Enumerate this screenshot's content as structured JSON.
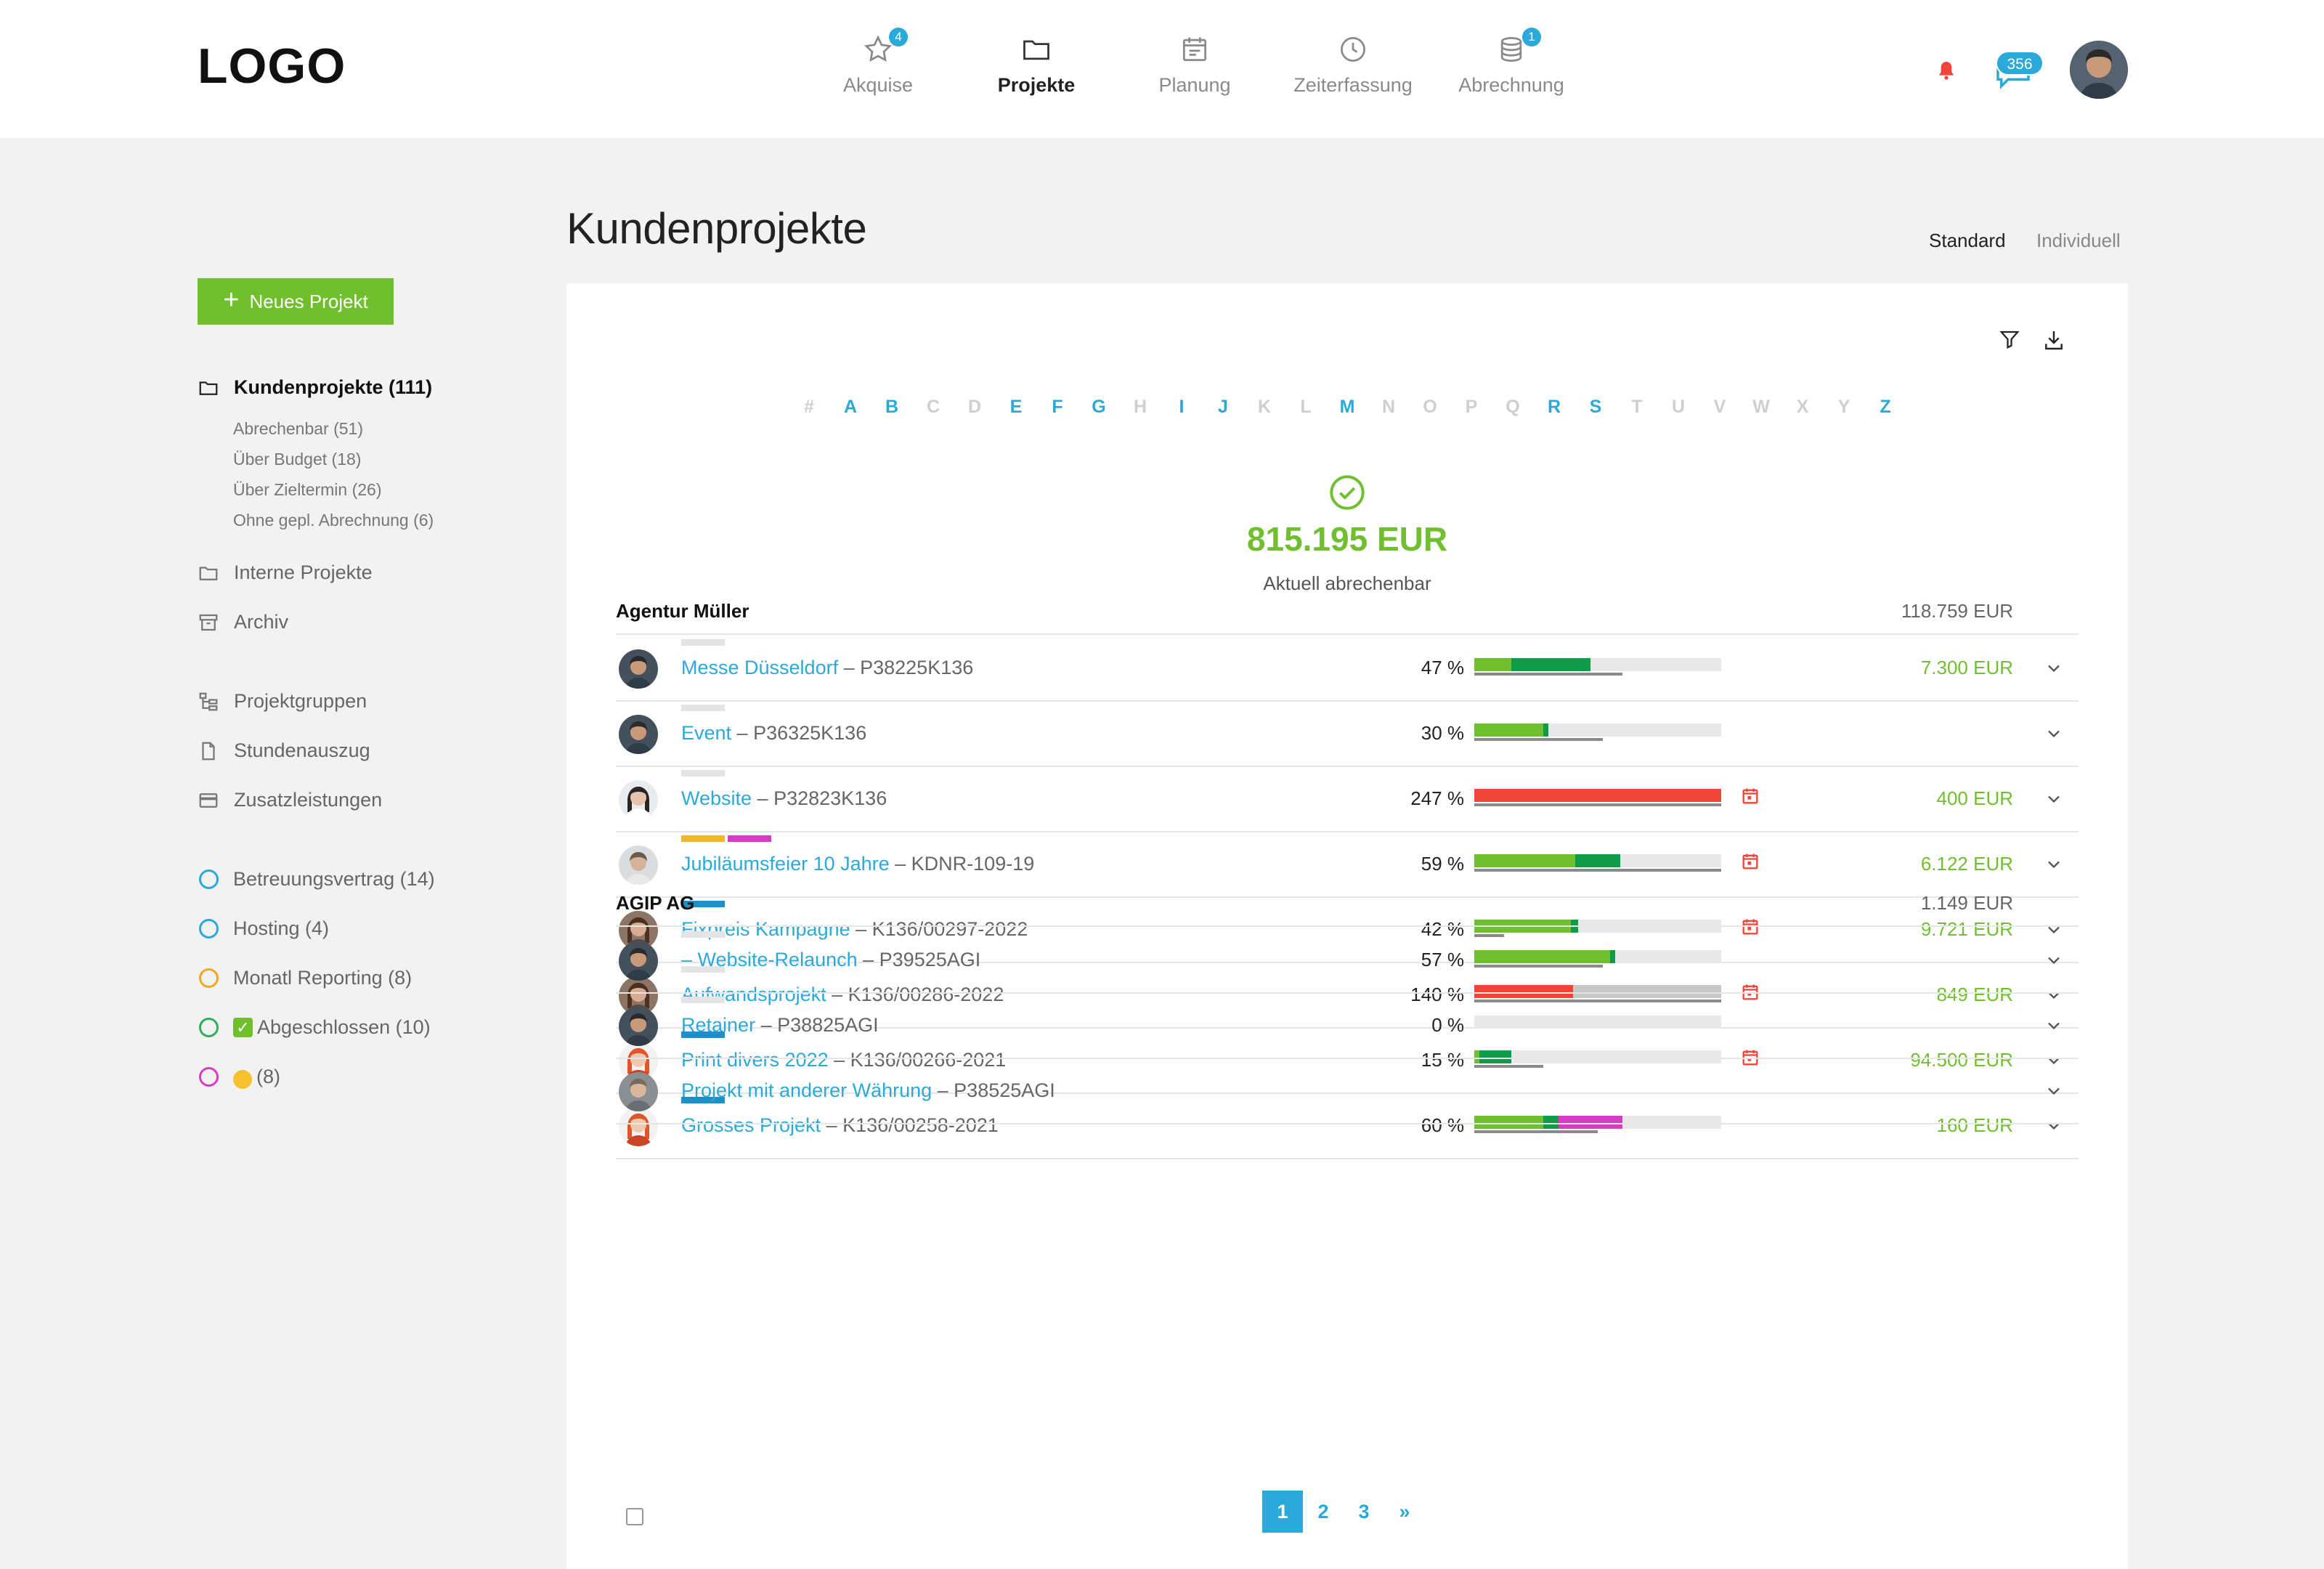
{
  "logo": "LOGO",
  "nav": {
    "items": [
      {
        "label": "Akquise",
        "icon": "star-icon",
        "badge": "4"
      },
      {
        "label": "Projekte",
        "icon": "folder-icon",
        "badge": ""
      },
      {
        "label": "Planung",
        "icon": "calendar-icon",
        "badge": ""
      },
      {
        "label": "Zeiterfassung",
        "icon": "clock-icon",
        "badge": ""
      },
      {
        "label": "Abrechnung",
        "icon": "coins-icon",
        "badge": "1"
      }
    ],
    "chat_badge": "356"
  },
  "sidebar": {
    "new_button": "Neues Projekt",
    "main": {
      "label": "Kundenprojekte (111)"
    },
    "sub": [
      "Abrechenbar (51)",
      "Über Budget (18)",
      "Über Zieltermin (26)",
      "Ohne gepl. Abrechnung (6)"
    ],
    "folders": [
      "Interne Projekte",
      "Archiv"
    ],
    "tools": [
      "Projektgruppen",
      "Stundenauszug",
      "Zusatzleistungen"
    ],
    "labels": [
      {
        "text": "Betreuungsvertrag (14)",
        "color": "#2ba9d8"
      },
      {
        "text": "Hosting (4)",
        "color": "#2ba9d8"
      },
      {
        "text": "Monatl Reporting (8)",
        "color": "#f5a623"
      },
      {
        "text": "Abgeschlossen (10)",
        "color": "#2fae5a"
      },
      {
        "text": "(8)",
        "color": "#d63cc5"
      }
    ]
  },
  "page": {
    "title": "Kundenprojekte",
    "view_standard": "Standard",
    "view_individuell": "Individuell"
  },
  "alphabet": [
    {
      "c": "#",
      "on": false
    },
    {
      "c": "A",
      "on": true
    },
    {
      "c": "B",
      "on": true
    },
    {
      "c": "C",
      "on": false
    },
    {
      "c": "D",
      "on": false
    },
    {
      "c": "E",
      "on": true
    },
    {
      "c": "F",
      "on": true
    },
    {
      "c": "G",
      "on": true
    },
    {
      "c": "H",
      "on": false
    },
    {
      "c": "I",
      "on": true
    },
    {
      "c": "J",
      "on": true
    },
    {
      "c": "K",
      "on": false
    },
    {
      "c": "L",
      "on": false
    },
    {
      "c": "M",
      "on": true
    },
    {
      "c": "N",
      "on": false
    },
    {
      "c": "O",
      "on": false
    },
    {
      "c": "P",
      "on": false
    },
    {
      "c": "Q",
      "on": false
    },
    {
      "c": "R",
      "on": true
    },
    {
      "c": "S",
      "on": true
    },
    {
      "c": "T",
      "on": false
    },
    {
      "c": "U",
      "on": false
    },
    {
      "c": "V",
      "on": false
    },
    {
      "c": "W",
      "on": false
    },
    {
      "c": "X",
      "on": false
    },
    {
      "c": "Y",
      "on": false
    },
    {
      "c": "Z",
      "on": true
    }
  ],
  "summary": {
    "value": "815.195 EUR",
    "label": "Aktuell abrechenbar"
  },
  "colors": {
    "green": "#6fbf2e",
    "darkgreen": "#0e9c4a",
    "red": "#f0463a",
    "magenta": "#d63cc5",
    "grey": "#c8c8c8",
    "blue": "#2ba9d8"
  },
  "groups": [
    {
      "name": "Agentur Müller",
      "total": "118.759 EUR",
      "rows": [
        {
          "link": "Messe Düsseldorf",
          "code": " – P38225K136",
          "pct": "47 %",
          "progress": 0.47,
          "segs": [
            [
              "green",
              0,
              0.15
            ],
            [
              "darkgreen",
              0.15,
              0.47
            ]
          ],
          "under": 0.6,
          "cal": false,
          "amount": "7.300 EUR",
          "tags": [
            "grey"
          ],
          "avatar": "m1"
        },
        {
          "link": "Event",
          "code": " – P36325K136",
          "pct": "30 %",
          "progress": 0.3,
          "segs": [
            [
              "green",
              0,
              0.28
            ],
            [
              "darkgreen",
              0.28,
              0.3
            ]
          ],
          "under": 0.52,
          "cal": false,
          "amount": "",
          "tags": [
            "grey"
          ],
          "avatar": "m1"
        },
        {
          "link": "Website",
          "code": " – P32823K136",
          "pct": "247 %",
          "progress": 2.47,
          "segs": [
            [
              "red",
              0,
              1.0
            ]
          ],
          "under": 1.0,
          "cal": true,
          "amount": "400 EUR",
          "tags": [
            "grey"
          ],
          "avatar": "f1"
        },
        {
          "link": "Jubiläumsfeier 10 Jahre",
          "code": " – KDNR-109-19",
          "pct": "59 %",
          "progress": 0.59,
          "segs": [
            [
              "green",
              0,
              0.41
            ],
            [
              "darkgreen",
              0.41,
              0.59
            ]
          ],
          "under": 1.0,
          "cal": true,
          "amount": "6.122 EUR",
          "tags": [
            "orange",
            "magenta"
          ],
          "avatar": "m2"
        },
        {
          "link": "Fixpreis Kampagne",
          "code": " – K136/00297-2022",
          "pct": "42 %",
          "progress": 0.42,
          "segs": [
            [
              "green",
              0,
              0.39
            ],
            [
              "darkgreen",
              0.39,
              0.42
            ]
          ],
          "under": 0.12,
          "cal": true,
          "amount": "9.721 EUR",
          "tags": [
            "blue"
          ],
          "avatar": "f2"
        },
        {
          "link": "Aufwandsprojekt",
          "code": " – K136/00286-2022",
          "pct": "140 %",
          "progress": 1.4,
          "segs": [
            [
              "red",
              0,
              0.4
            ],
            [
              "grey",
              0.4,
              1.0
            ]
          ],
          "under": 1.0,
          "cal": true,
          "amount": "849 EUR",
          "tags": [
            "grey"
          ],
          "avatar": "f2"
        },
        {
          "link": "Print divers 2022",
          "code": " – K136/00266-2021",
          "pct": "15 %",
          "progress": 0.15,
          "segs": [
            [
              "green",
              0,
              0.02
            ],
            [
              "darkgreen",
              0.02,
              0.15
            ]
          ],
          "under": 0.28,
          "cal": true,
          "amount": "94.500 EUR",
          "tags": [
            "blue"
          ],
          "avatar": "f3"
        },
        {
          "link": "Grosses Projekt",
          "code": " – K136/00258-2021",
          "pct": "60 %",
          "progress": 0.6,
          "segs": [
            [
              "green",
              0,
              0.28
            ],
            [
              "darkgreen",
              0.28,
              0.34
            ],
            [
              "magenta",
              0.34,
              0.6
            ]
          ],
          "under": 0.5,
          "cal": false,
          "amount": "160 EUR",
          "tags": [
            "blue"
          ],
          "avatar": "f3"
        }
      ]
    },
    {
      "name": "AGIP AG",
      "total": "1.149 EUR",
      "rows": [
        {
          "link": "– Website-Relaunch",
          "code": " – P39525AGI",
          "pct": "57 %",
          "progress": 0.57,
          "segs": [
            [
              "green",
              0,
              0.55
            ],
            [
              "darkgreen",
              0.55,
              0.57
            ]
          ],
          "under": 0.52,
          "cal": false,
          "amount": "",
          "tags": [
            "grey"
          ],
          "avatar": "m1"
        },
        {
          "link": "Retainer",
          "code": " – P38825AGI",
          "pct": "0 %",
          "progress": 0.0,
          "segs": [],
          "under": 0,
          "cal": false,
          "amount": "",
          "tags": [
            "grey"
          ],
          "avatar": "m1"
        },
        {
          "link": "Projekt mit anderer Währung",
          "code": " – P38525AGI",
          "pct": "",
          "progress": null,
          "segs": [],
          "under": 0,
          "cal": false,
          "amount": "",
          "tags": [],
          "avatar": "m3"
        }
      ]
    }
  ],
  "pagination": {
    "pages": [
      "1",
      "2",
      "3"
    ],
    "active": "1",
    "next": "»"
  }
}
